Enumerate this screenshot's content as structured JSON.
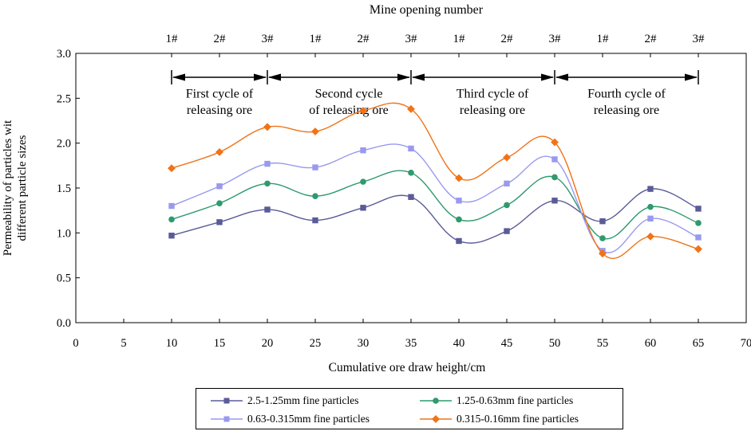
{
  "chart_data": {
    "type": "line",
    "top_axis_title": "Mine opening number",
    "xlabel": "Cumulative ore draw height/cm",
    "ylabel_lines": [
      "Permeability of particles wit",
      "different particle sizes"
    ],
    "xlim": [
      0,
      70
    ],
    "ylim": [
      0,
      3.0
    ],
    "x_ticks": [
      "0",
      "5",
      "10",
      "15",
      "20",
      "25",
      "30",
      "35",
      "40",
      "45",
      "50",
      "55",
      "60",
      "65",
      "70"
    ],
    "y_ticks": [
      "0.0",
      "0.5",
      "1.0",
      "1.5",
      "2.0",
      "2.5",
      "3.0"
    ],
    "top_ticks": [
      {
        "x": 10,
        "label": "1#"
      },
      {
        "x": 15,
        "label": "2#"
      },
      {
        "x": 20,
        "label": "3#"
      },
      {
        "x": 25,
        "label": "1#"
      },
      {
        "x": 30,
        "label": "2#"
      },
      {
        "x": 35,
        "label": "3#"
      },
      {
        "x": 40,
        "label": "1#"
      },
      {
        "x": 45,
        "label": "2#"
      },
      {
        "x": 50,
        "label": "3#"
      },
      {
        "x": 55,
        "label": "1#"
      },
      {
        "x": 60,
        "label": "2#"
      },
      {
        "x": 65,
        "label": "3#"
      }
    ],
    "cycle_boundaries": [
      10,
      20,
      35,
      50,
      65
    ],
    "cycles": [
      {
        "lines": [
          "First cycle of",
          "releasing ore"
        ],
        "x": 15,
        "y": [
          2.55,
          2.37
        ]
      },
      {
        "lines": [
          "Second cycle",
          "of releasing ore"
        ],
        "x": 28.5,
        "y": [
          2.55,
          2.37
        ]
      },
      {
        "lines": [
          "Third cycle of",
          "releasing ore"
        ],
        "x": 43.5,
        "y": [
          2.55,
          2.37
        ]
      },
      {
        "lines": [
          "Fourth cycle of",
          "releasing ore"
        ],
        "x": 57.5,
        "y": [
          2.55,
          2.37
        ]
      }
    ],
    "x": [
      10,
      15,
      20,
      25,
      30,
      35,
      40,
      45,
      50,
      55,
      60,
      65
    ],
    "series": [
      {
        "name": "2.5-1.25mm fine particles",
        "color": "#5b5b99",
        "marker": "square",
        "values": [
          0.97,
          1.12,
          1.26,
          1.14,
          1.28,
          1.4,
          0.91,
          1.02,
          1.36,
          1.13,
          1.49,
          1.27
        ]
      },
      {
        "name": "1.25-0.63mm fine particles",
        "color": "#2e9a6e",
        "marker": "circle",
        "values": [
          1.15,
          1.33,
          1.55,
          1.41,
          1.57,
          1.67,
          1.15,
          1.31,
          1.62,
          0.94,
          1.29,
          1.11
        ]
      },
      {
        "name": "0.63-0.315mm fine particles",
        "color": "#9999ef",
        "marker": "square",
        "values": [
          1.3,
          1.52,
          1.77,
          1.73,
          1.92,
          1.94,
          1.36,
          1.55,
          1.82,
          0.8,
          1.16,
          0.95
        ]
      },
      {
        "name": "0.315-0.16mm fine particles",
        "color": "#f07318",
        "marker": "diamond",
        "values": [
          1.72,
          1.9,
          2.18,
          2.13,
          2.36,
          2.38,
          1.61,
          1.84,
          2.01,
          0.77,
          0.96,
          0.82
        ]
      }
    ]
  }
}
